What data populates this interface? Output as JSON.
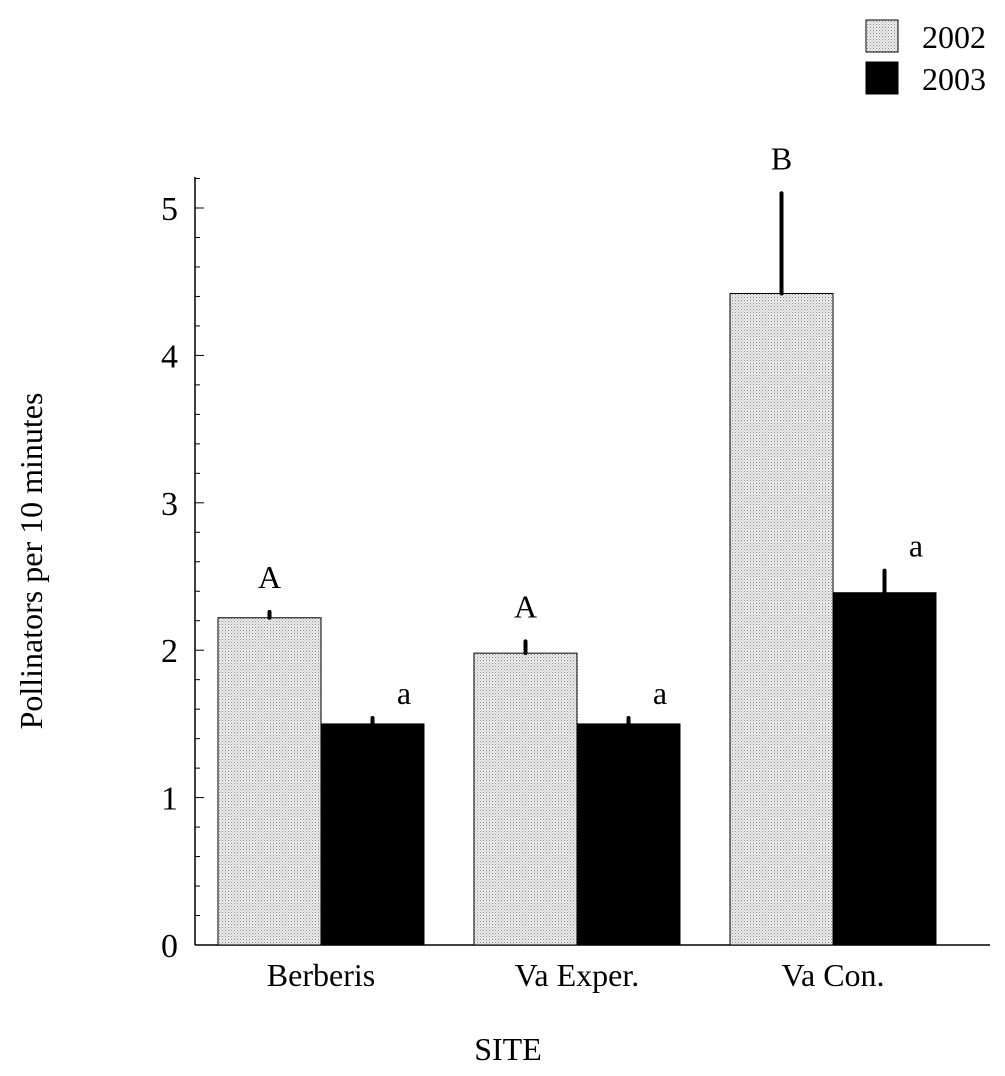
{
  "chart_data": {
    "type": "bar",
    "title": "",
    "xlabel": "SITE",
    "ylabel": "Pollinators per 10 minutes",
    "categories": [
      "Berberis",
      "Va Exper.",
      "Va Con."
    ],
    "series": [
      {
        "name": "2002",
        "values": [
          2.22,
          1.98,
          4.42
        ],
        "errors": [
          0.04,
          0.08,
          0.68
        ],
        "sig_labels": [
          "A",
          "A",
          "B"
        ],
        "color": "#e6e6e6",
        "pattern": "stipple"
      },
      {
        "name": "2003",
        "values": [
          1.5,
          1.5,
          2.39
        ],
        "errors": [
          0.04,
          0.04,
          0.15
        ],
        "sig_labels": [
          "a",
          "a",
          "a"
        ],
        "color": "#000000",
        "pattern": "solid"
      }
    ],
    "ylim": [
      0,
      5.2
    ],
    "yticks": [
      "0",
      "1",
      "2",
      "3",
      "4",
      "5"
    ],
    "minor_tick_step": 0.2,
    "grid": false,
    "legend_position": "top-right"
  }
}
